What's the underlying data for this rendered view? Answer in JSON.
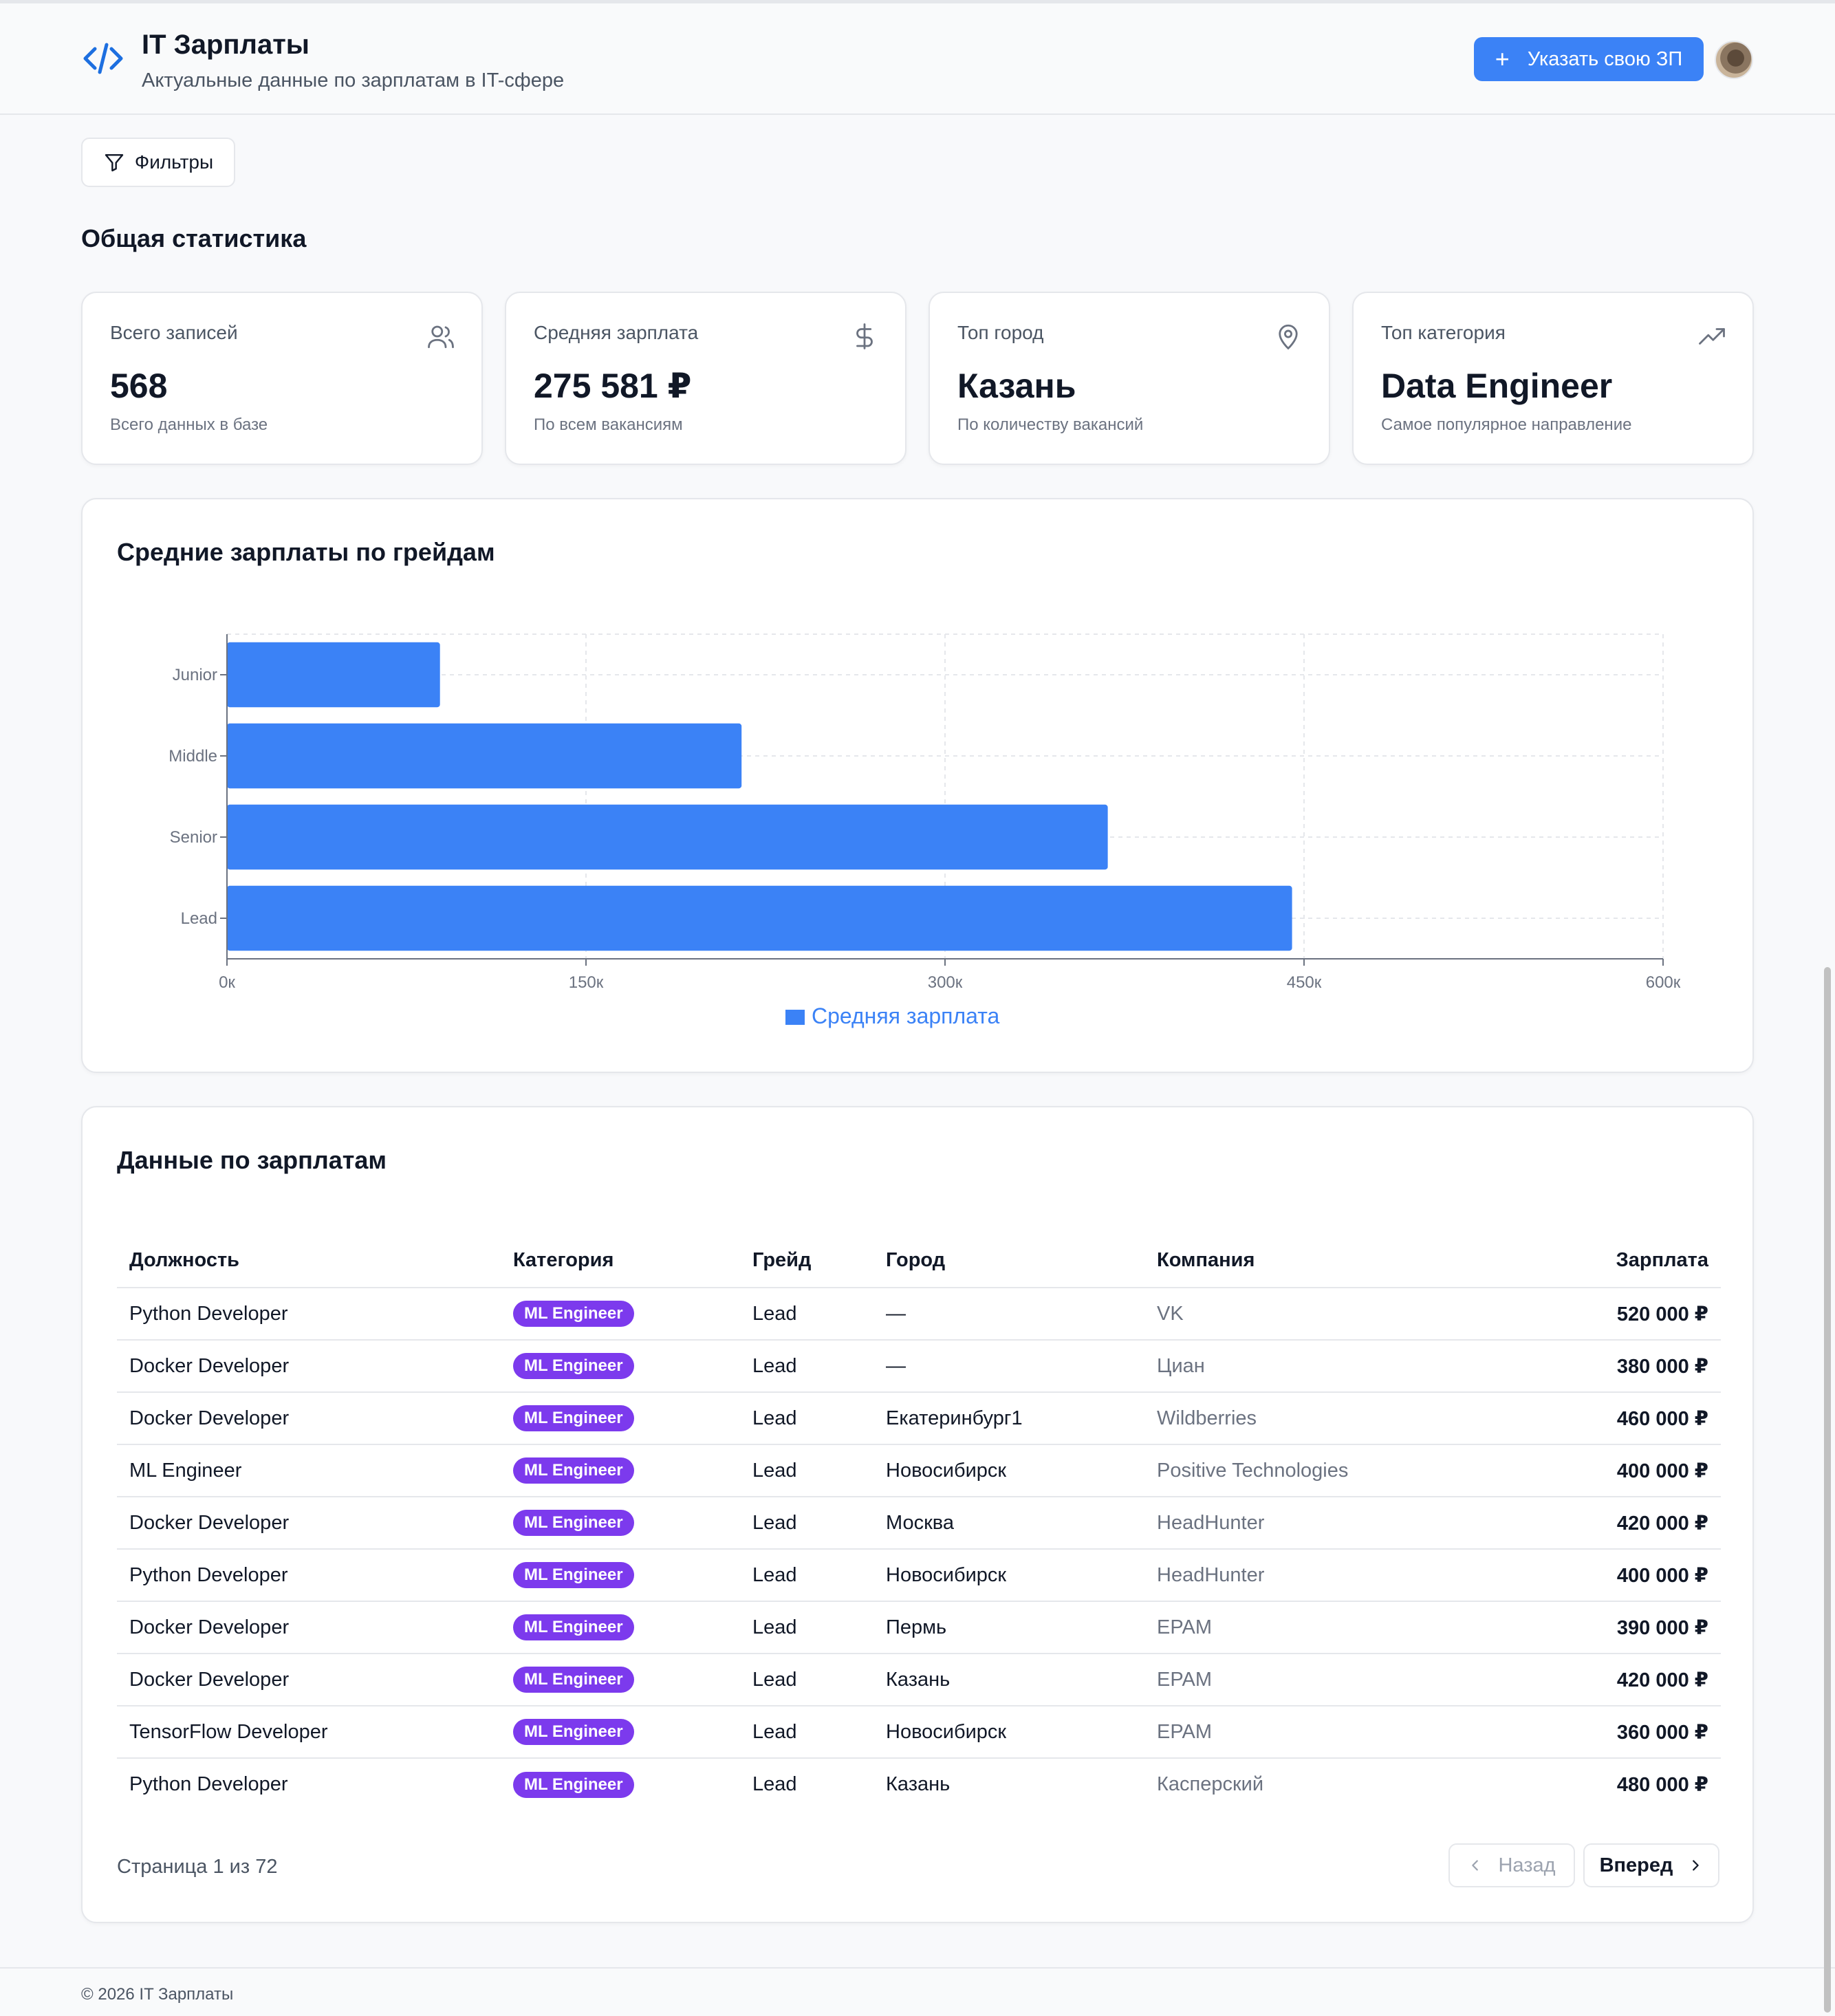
{
  "header": {
    "title": "IT Зарплаты",
    "subtitle": "Актуальные данные по зарплатам в IT-сфере",
    "add_button": "Указать свою ЗП",
    "logo_icon": "code-icon"
  },
  "filters": {
    "label": "Фильтры"
  },
  "stats": {
    "title": "Общая статистика",
    "cards": [
      {
        "label": "Всего записей",
        "value": "568",
        "desc": "Всего данных в базе",
        "icon": "users-icon"
      },
      {
        "label": "Средняя зарплата",
        "value": "275 581 ₽",
        "desc": "По всем вакансиям",
        "icon": "dollar-icon"
      },
      {
        "label": "Топ город",
        "value": "Казань",
        "desc": "По количеству вакансий",
        "icon": "map-pin-icon"
      },
      {
        "label": "Топ категория",
        "value": "Data Engineer",
        "desc": "Самое популярное направление",
        "icon": "trending-up-icon"
      }
    ]
  },
  "chart_data": {
    "type": "bar",
    "orientation": "horizontal",
    "title": "Средние зарплаты по грейдам",
    "categories": [
      "Junior",
      "Middle",
      "Senior",
      "Lead"
    ],
    "series": [
      {
        "name": "Средняя зарплата",
        "values": [
          89000,
          215000,
          368000,
          445000
        ],
        "color": "#3b82f6"
      }
    ],
    "xlim": [
      0,
      600000
    ],
    "xticks": [
      "0к",
      "150к",
      "300к",
      "450к",
      "600к"
    ],
    "grid": true,
    "legend": "bottom"
  },
  "table": {
    "title": "Данные по зарплатам",
    "columns": [
      "Должность",
      "Категория",
      "Грейд",
      "Город",
      "Компания",
      "Зарплата"
    ],
    "rows": [
      [
        "Python Developer",
        "ML Engineer",
        "Lead",
        "—",
        "VK",
        "520 000 ₽"
      ],
      [
        "Docker Developer",
        "ML Engineer",
        "Lead",
        "—",
        "Циан",
        "380 000 ₽"
      ],
      [
        "Docker Developer",
        "ML Engineer",
        "Lead",
        "Екатеринбург1",
        "Wildberries",
        "460 000 ₽"
      ],
      [
        "ML Engineer",
        "ML Engineer",
        "Lead",
        "Новосибирск",
        "Positive Technologies",
        "400 000 ₽"
      ],
      [
        "Docker Developer",
        "ML Engineer",
        "Lead",
        "Москва",
        "HeadHunter",
        "420 000 ₽"
      ],
      [
        "Python Developer",
        "ML Engineer",
        "Lead",
        "Новосибирск",
        "HeadHunter",
        "400 000 ₽"
      ],
      [
        "Docker Developer",
        "ML Engineer",
        "Lead",
        "Пермь",
        "EPAM",
        "390 000 ₽"
      ],
      [
        "Docker Developer",
        "ML Engineer",
        "Lead",
        "Казань",
        "EPAM",
        "420 000 ₽"
      ],
      [
        "TensorFlow Developer",
        "ML Engineer",
        "Lead",
        "Новосибирск",
        "EPAM",
        "360 000 ₽"
      ],
      [
        "Python Developer",
        "ML Engineer",
        "Lead",
        "Казань",
        "Касперский",
        "480 000 ₽"
      ]
    ],
    "page_info": "Страница 1 из 72",
    "prev_label": "Назад",
    "next_label": "Вперед"
  },
  "footer": {
    "copyright": "© 2026 IT Зарплаты"
  },
  "colors": {
    "accent": "#3b82f6",
    "badge": "#7c3aed"
  }
}
